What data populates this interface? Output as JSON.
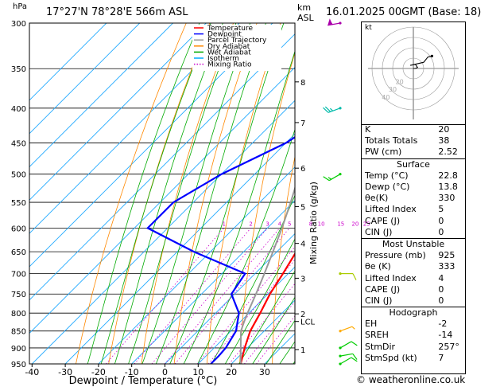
{
  "header": {
    "location": "17°27'N  78°28'E  566m  ASL",
    "datetime": "16.01.2025  00GMT  (Base: 18)",
    "hpa_unit": "hPa",
    "km_unit": "km",
    "asl_unit": "ASL",
    "kt_label": "kt"
  },
  "footer": {
    "copyright": "© weatheronline.co.uk"
  },
  "chart_data": {
    "type": "line",
    "subtype": "skew-T log-P",
    "xlabel": "Dewpoint / Temperature (°C)",
    "ylabel": "hPa",
    "mixing_ratio_label": "Mixing Ratio (g/kg)",
    "x_ticks": [
      -40,
      -30,
      -20,
      -10,
      0,
      10,
      20,
      30
    ],
    "y_ticks": [
      300,
      350,
      400,
      450,
      500,
      550,
      600,
      650,
      700,
      750,
      800,
      850,
      900,
      950
    ],
    "ylim": [
      300,
      950
    ],
    "xlim": [
      -40,
      40
    ],
    "km_ticks": [
      {
        "label": "8",
        "p": 366
      },
      {
        "label": "7",
        "p": 420
      },
      {
        "label": "6",
        "p": 490
      },
      {
        "label": "5",
        "p": 558
      },
      {
        "label": "4",
        "p": 632
      },
      {
        "label": "3",
        "p": 711
      },
      {
        "label": "2",
        "p": 802
      },
      {
        "label": "LCL",
        "p": 823
      },
      {
        "label": "1",
        "p": 905
      }
    ],
    "mixing_ratio_values": [
      "1",
      "2",
      "3",
      "4",
      "5",
      "8",
      "10",
      "15",
      "20",
      "25"
    ],
    "mixing_ratio_gkg": [
      1,
      2,
      3,
      4,
      5,
      8,
      10,
      15,
      20,
      25
    ],
    "legend": [
      "Temperature",
      "Dewpoint",
      "Parcel Trajectory",
      "Dry Adiabat",
      "Wet Adiabat",
      "Isotherm",
      "Mixing Ratio"
    ],
    "legend_colors": {
      "Temperature": "#ff0000",
      "Dewpoint": "#0000ff",
      "Parcel Trajectory": "#999999",
      "Dry Adiabat": "#ff8800",
      "Wet Adiabat": "#00aa00",
      "Isotherm": "#00aaff",
      "Mixing Ratio": "#cc00cc"
    },
    "series": [
      {
        "name": "Temperature",
        "color": "#ff0000",
        "points": [
          [
            950,
            22.8
          ],
          [
            925,
            21
          ],
          [
            900,
            19.2
          ],
          [
            850,
            15.8
          ],
          [
            800,
            13.4
          ],
          [
            750,
            10.6
          ],
          [
            700,
            8.4
          ],
          [
            650,
            5.8
          ],
          [
            600,
            2.5
          ],
          [
            550,
            -1.5
          ],
          [
            500,
            -6.2
          ],
          [
            450,
            -12.5
          ],
          [
            400,
            -19.5
          ],
          [
            350,
            -28
          ],
          [
            300,
            -38
          ]
        ]
      },
      {
        "name": "Dewpoint",
        "color": "#0000ff",
        "points": [
          [
            950,
            13.8
          ],
          [
            925,
            13.8
          ],
          [
            900,
            13.5
          ],
          [
            850,
            11.5
          ],
          [
            800,
            7
          ],
          [
            750,
            -1
          ],
          [
            700,
            -3
          ],
          [
            650,
            -25
          ],
          [
            600,
            -46
          ],
          [
            550,
            -46
          ],
          [
            500,
            -40
          ],
          [
            450,
            -30
          ],
          [
            400,
            -24
          ],
          [
            350,
            -30
          ],
          [
            300,
            -40
          ]
        ]
      },
      {
        "name": "Parcel Trajectory",
        "color": "#999999",
        "points": [
          [
            950,
            22.8
          ],
          [
            900,
            18
          ],
          [
            850,
            13
          ],
          [
            823,
            11.1
          ],
          [
            800,
            9.6
          ],
          [
            750,
            6.4
          ],
          [
            700,
            2.8
          ],
          [
            650,
            -1.2
          ],
          [
            600,
            -5.6
          ],
          [
            550,
            -10.7
          ],
          [
            500,
            -16.6
          ],
          [
            450,
            -23.5
          ],
          [
            400,
            -31.6
          ],
          [
            350,
            -41.3
          ],
          [
            300,
            -52.7
          ]
        ]
      }
    ],
    "hodograph": {
      "rings_kt": [
        10,
        20,
        30,
        40
      ],
      "ring_labels": [
        "10",
        "20",
        "30",
        "40"
      ],
      "points_kt": [
        [
          0,
          0
        ],
        [
          2,
          0
        ],
        [
          4,
          1
        ],
        [
          2,
          4
        ],
        [
          -3,
          3
        ],
        [
          10,
          6
        ],
        [
          14,
          11
        ],
        [
          18,
          12
        ]
      ]
    },
    "wind_barbs": [
      {
        "p": 300,
        "color": "#aa00aa",
        "dir": 260,
        "kt": 55
      },
      {
        "p": 400,
        "color": "#00bbaa",
        "dir": 250,
        "kt": 25
      },
      {
        "p": 500,
        "color": "#00cc00",
        "dir": 240,
        "kt": 15
      },
      {
        "p": 700,
        "color": "#aacc00",
        "dir": 90,
        "kt": 10
      },
      {
        "p": 850,
        "color": "#ffaa00",
        "dir": 70,
        "kt": 5
      },
      {
        "p": 900,
        "color": "#00cc00",
        "dir": 60,
        "kt": 10
      },
      {
        "p": 925,
        "color": "#00cc00",
        "dir": 80,
        "kt": 10
      },
      {
        "p": 950,
        "color": "#00cc00",
        "dir": 60,
        "kt": 10
      }
    ],
    "x_ticks_labels": [
      "-40",
      "-30",
      "-20",
      "-10",
      "0",
      "10",
      "20",
      "30"
    ]
  },
  "indices": {
    "top": [
      {
        "label": "K",
        "value": "20"
      },
      {
        "label": "Totals Totals",
        "value": "38"
      },
      {
        "label": "PW (cm)",
        "value": "2.52"
      }
    ],
    "surface_title": "Surface",
    "surface": [
      {
        "label": "Temp (°C)",
        "value": "22.8"
      },
      {
        "label": "Dewp (°C)",
        "value": "13.8"
      },
      {
        "label": "θe(K)",
        "value": "330"
      },
      {
        "label": "Lifted Index",
        "value": "5"
      },
      {
        "label": "CAPE (J)",
        "value": "0"
      },
      {
        "label": "CIN (J)",
        "value": "0"
      }
    ],
    "mu_title": "Most Unstable",
    "mu": [
      {
        "label": "Pressure (mb)",
        "value": "925"
      },
      {
        "label": "θe (K)",
        "value": "333"
      },
      {
        "label": "Lifted Index",
        "value": "4"
      },
      {
        "label": "CAPE (J)",
        "value": "0"
      },
      {
        "label": "CIN (J)",
        "value": "0"
      }
    ],
    "hodo_title": "Hodograph",
    "hodo": [
      {
        "label": "EH",
        "value": "-2"
      },
      {
        "label": "SREH",
        "value": "-14"
      },
      {
        "label": "StmDir",
        "value": "257°"
      },
      {
        "label": "StmSpd (kt)",
        "value": "7"
      }
    ]
  }
}
